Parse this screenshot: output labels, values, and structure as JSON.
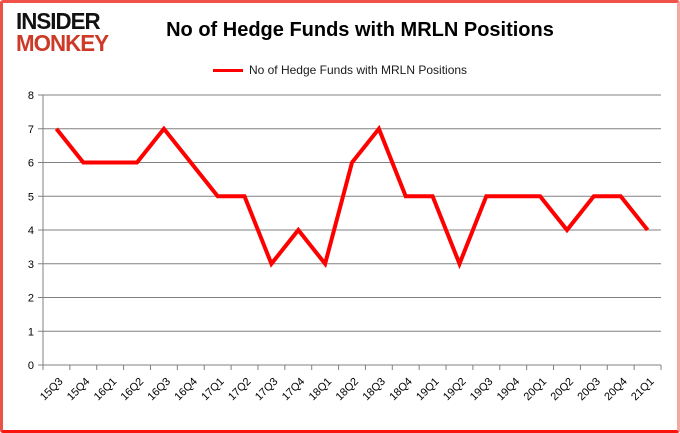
{
  "logo": {
    "line1": "INSIDER",
    "line2": "MONKEY"
  },
  "header": {
    "title": "No of Hedge Funds with MRLN Positions"
  },
  "legend": {
    "label": "No of Hedge Funds with MRLN Positions"
  },
  "colors": {
    "series": "#ff0000",
    "grid": "#808080",
    "axis_text": "#000000",
    "logo_black": "#121212",
    "logo_red": "#cd3b28",
    "border_red": "#f0524a",
    "background": "#ffffff"
  },
  "chart_data": {
    "type": "line",
    "title": "No of Hedge Funds with MRLN Positions",
    "xlabel": "",
    "ylabel": "",
    "categories": [
      "15Q3",
      "15Q4",
      "16Q1",
      "16Q2",
      "16Q3",
      "16Q4",
      "17Q1",
      "17Q2",
      "17Q3",
      "17Q4",
      "18Q1",
      "18Q2",
      "18Q3",
      "18Q4",
      "19Q1",
      "19Q2",
      "19Q3",
      "19Q4",
      "20Q1",
      "20Q2",
      "20Q3",
      "20Q4",
      "21Q1"
    ],
    "values": [
      7,
      6,
      6,
      6,
      7,
      6,
      5,
      5,
      3,
      4,
      3,
      6,
      7,
      5,
      5,
      3,
      5,
      5,
      5,
      4,
      5,
      5,
      4
    ],
    "ylim": [
      0,
      8
    ],
    "ytick_step": 1,
    "grid": true,
    "legend_position": "top",
    "series_color": "#ff0000",
    "line_width": 4
  }
}
